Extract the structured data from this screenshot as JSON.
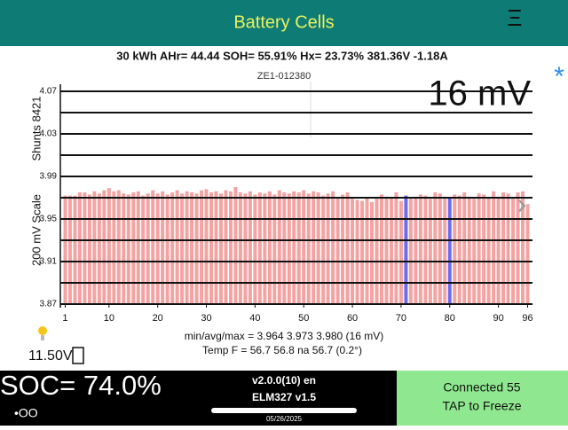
{
  "header": {
    "title": "Battery Cells",
    "menu": "Ξ"
  },
  "summary": "30 kWh  AHr= 44.44  SOH= 55.91%  Hx= 23.73%   381.36V -1.18A",
  "vin": "ZE1-012380",
  "spread": "16 mV",
  "star": "*",
  "chart_data": {
    "type": "bar",
    "ylabel": "200 mV Scale",
    "ylabel2": "Shunts 8421",
    "x": [
      1,
      2,
      3,
      4,
      5,
      6,
      7,
      8,
      9,
      10,
      11,
      12,
      13,
      14,
      15,
      16,
      17,
      18,
      19,
      20,
      21,
      22,
      23,
      24,
      25,
      26,
      27,
      28,
      29,
      30,
      31,
      32,
      33,
      34,
      35,
      36,
      37,
      38,
      39,
      40,
      41,
      42,
      43,
      44,
      45,
      46,
      47,
      48,
      49,
      50,
      51,
      52,
      53,
      54,
      55,
      56,
      57,
      58,
      59,
      60,
      61,
      62,
      63,
      64,
      65,
      66,
      67,
      68,
      69,
      70,
      71,
      72,
      73,
      74,
      75,
      76,
      77,
      78,
      79,
      80,
      81,
      82,
      83,
      84,
      85,
      86,
      87,
      88,
      89,
      90,
      91,
      92,
      93,
      94,
      95,
      96
    ],
    "series": [
      {
        "name": "Cells",
        "color": "#f4a3a3",
        "values": [
          3.972,
          3.972,
          3.972,
          3.975,
          3.975,
          3.973,
          3.976,
          3.974,
          3.977,
          3.979,
          3.976,
          3.977,
          3.974,
          3.973,
          3.975,
          3.976,
          3.972,
          3.974,
          3.977,
          3.974,
          3.976,
          3.973,
          3.975,
          3.977,
          3.974,
          3.976,
          3.975,
          3.974,
          3.977,
          3.978,
          3.975,
          3.976,
          3.974,
          3.977,
          3.976,
          3.98,
          3.975,
          3.974,
          3.976,
          3.973,
          3.975,
          3.974,
          3.976,
          3.973,
          3.977,
          3.975,
          3.974,
          3.976,
          3.975,
          3.977,
          3.974,
          3.976,
          3.975,
          3.972,
          3.974,
          3.976,
          3.97,
          3.973,
          3.975,
          3.969,
          3.968,
          3.967,
          3.97,
          3.966,
          3.969,
          3.973,
          3.971,
          3.97,
          3.975,
          3.967,
          3.972,
          3.969,
          3.971,
          3.973,
          3.972,
          3.969,
          3.975,
          3.974,
          3.971,
          3.97,
          3.973,
          3.972,
          3.975,
          3.971,
          3.969,
          3.974,
          3.973,
          3.97,
          3.976,
          3.971,
          3.975,
          3.974,
          3.97,
          3.975,
          3.976,
          3.964
        ]
      }
    ],
    "highlight_x": [
      71,
      80
    ],
    "highlight_color": "#6b6bf0",
    "xlim": [
      0,
      97
    ],
    "xticks": [
      1,
      10,
      20,
      30,
      40,
      50,
      60,
      70,
      80,
      90,
      96
    ],
    "ylim": [
      3.87,
      4.07
    ],
    "yticks": [
      3.87,
      3.91,
      3.95,
      3.99,
      4.03,
      4.07
    ],
    "minor_yticks": [
      3.89,
      3.93,
      3.97,
      4.01,
      4.05
    ],
    "grid": true
  },
  "stats": {
    "minavgmax": "min/avg/max = 3.964 3.973 3.980  (16 mV)",
    "temp": "Temp F = 56.7  56.8  na  56.7  (0.2°)"
  },
  "aux_voltage": "11.50V",
  "footer": {
    "soc": "SOC= 74.0%",
    "indicator": "•OO",
    "version": "v2.0.0(10) en",
    "adapter": "ELM327 v1.5",
    "date": "05/26/2025",
    "status": "Connected 55",
    "action": "TAP to Freeze"
  }
}
